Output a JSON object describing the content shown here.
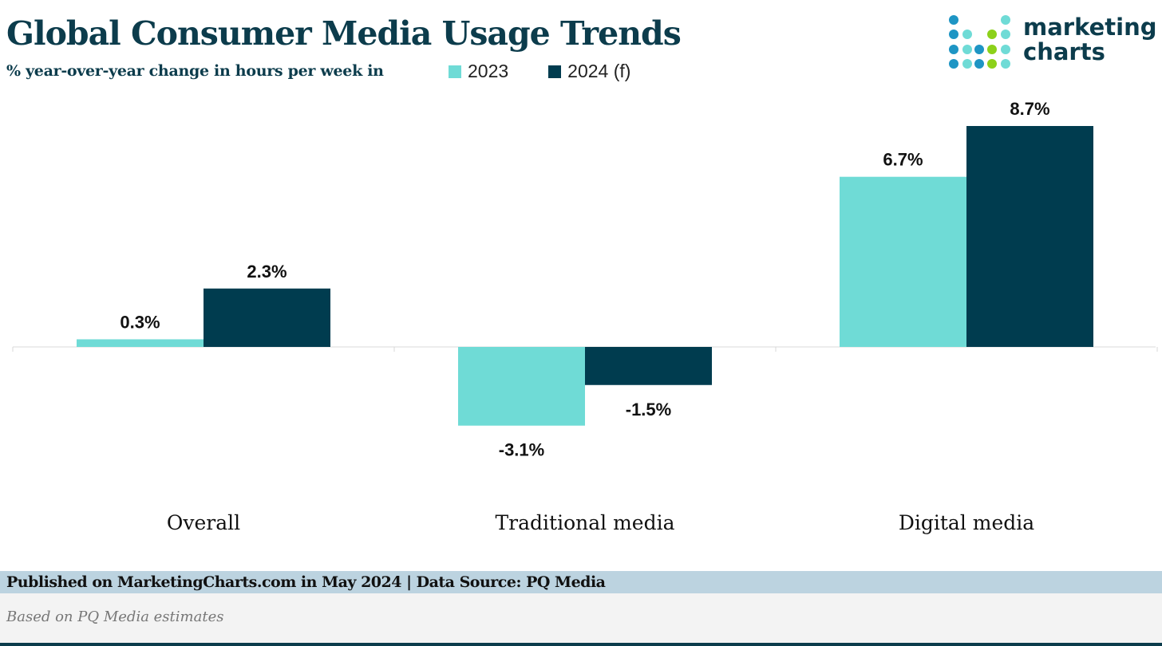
{
  "header": {
    "title": "Global Consumer Media Usage Trends",
    "subtitle": "% year-over-year change in hours per week in"
  },
  "logo": {
    "line1": "marketing",
    "line2": "charts"
  },
  "footer": {
    "published": "Published on MarketingCharts.com in May 2024 | Data Source: PQ Media",
    "note": "Based on PQ Media estimates"
  },
  "colors": {
    "2023": "#6fdbd6",
    "2024": "#003c4f",
    "title": "#0c3c4c"
  },
  "chart_data": {
    "type": "bar",
    "title": "Global Consumer Media Usage Trends",
    "subtitle": "% year-over-year change in hours per week in",
    "categories": [
      "Overall",
      "Traditional media",
      "Digital media"
    ],
    "series": [
      {
        "name": "2023",
        "values": [
          0.3,
          -3.1,
          6.7
        ],
        "labels": [
          "0.3%",
          "-3.1%",
          "6.7%"
        ]
      },
      {
        "name": "2024 (f)",
        "values": [
          2.3,
          -1.5,
          8.7
        ],
        "labels": [
          "2.3%",
          "-1.5%",
          "8.7%"
        ]
      }
    ],
    "legend_position": "top",
    "grid": false,
    "ylim": [
      -4,
      9
    ]
  }
}
